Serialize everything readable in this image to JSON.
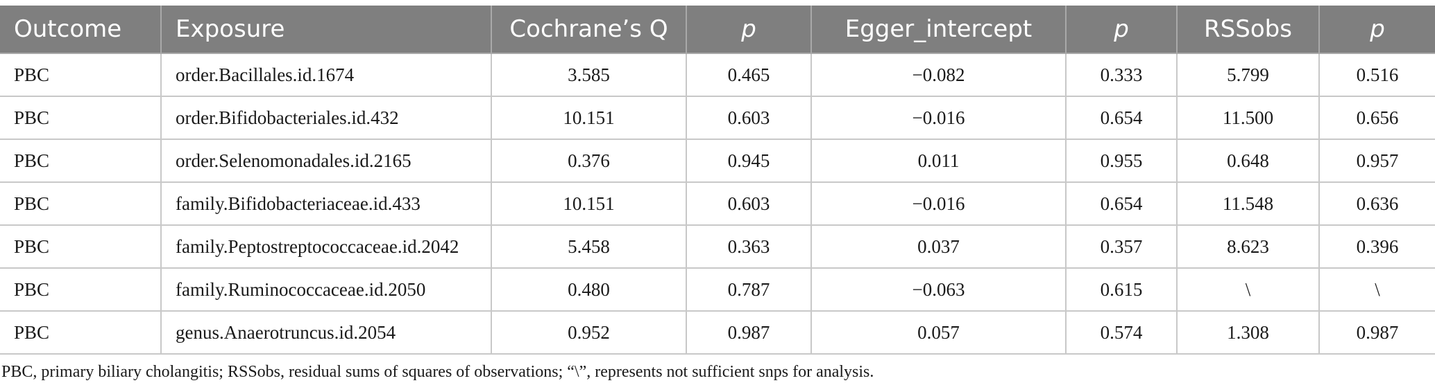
{
  "table": {
    "headers": [
      "Outcome",
      "Exposure",
      "Cochrane’s Q",
      "p",
      "Egger_intercept",
      "p",
      "RSSobs",
      "p"
    ],
    "rows": [
      [
        "PBC",
        "order.Bacillales.id.1674",
        "3.585",
        "0.465",
        "−0.082",
        "0.333",
        "5.799",
        "0.516"
      ],
      [
        "PBC",
        "order.Bifidobacteriales.id.432",
        "10.151",
        "0.603",
        "−0.016",
        "0.654",
        "11.500",
        "0.656"
      ],
      [
        "PBC",
        "order.Selenomonadales.id.2165",
        "0.376",
        "0.945",
        "0.011",
        "0.955",
        "0.648",
        "0.957"
      ],
      [
        "PBC",
        "family.Bifidobacteriaceae.id.433",
        "10.151",
        "0.603",
        "−0.016",
        "0.654",
        "11.548",
        "0.636"
      ],
      [
        "PBC",
        "family.Peptostreptococcaceae.id.2042",
        "5.458",
        "0.363",
        "0.037",
        "0.357",
        "8.623",
        "0.396"
      ],
      [
        "PBC",
        "family.Ruminococcaceae.id.2050",
        "0.480",
        "0.787",
        "−0.063",
        "0.615",
        "\\",
        "\\"
      ],
      [
        "PBC",
        "genus.Anaerotruncus.id.2054",
        "0.952",
        "0.987",
        "0.057",
        "0.574",
        "1.308",
        "0.987"
      ]
    ]
  },
  "footnote": "PBC, primary biliary cholangitis; RSSobs, residual sums of squares of observations; “\\”, represents not sufficient snps for analysis."
}
